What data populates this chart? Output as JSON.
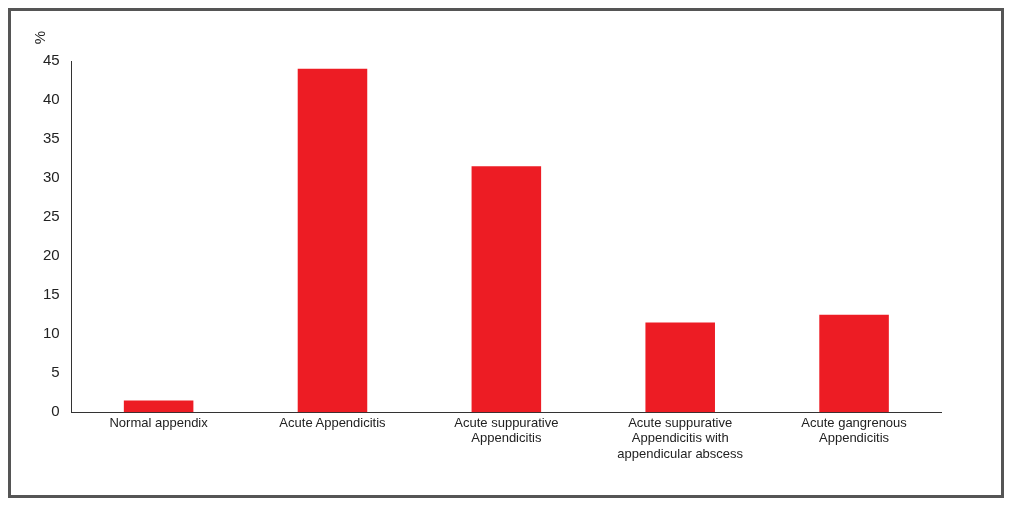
{
  "chart_data": {
    "type": "bar",
    "ylabel": "%",
    "categories": [
      "Normal appendix",
      "Acute Appendicitis",
      "Acute suppurative Appendicitis",
      "Acute suppurative Appendicitis with appendicular abscess",
      "Acute gangrenous Appendicitis"
    ],
    "values": [
      1.5,
      44,
      31.5,
      11.5,
      12.5
    ],
    "color": "#ed1c24",
    "ylim": [
      0,
      45
    ],
    "yticks": [
      0,
      5,
      10,
      15,
      20,
      25,
      30,
      35,
      40,
      45
    ],
    "grid": false,
    "legend": false
  }
}
